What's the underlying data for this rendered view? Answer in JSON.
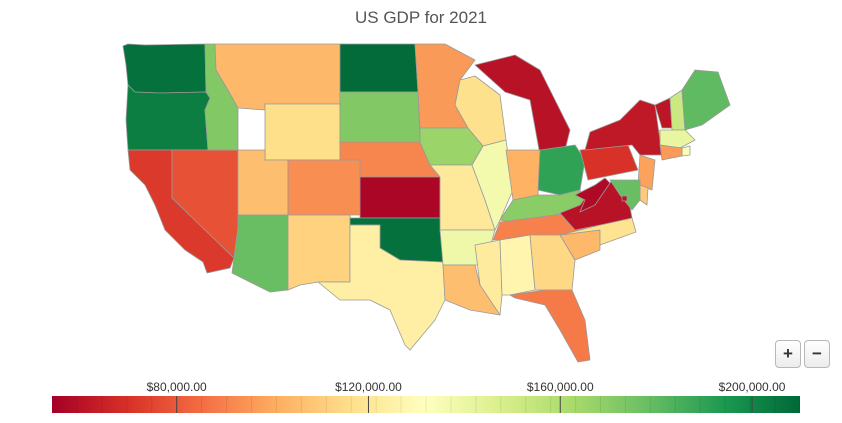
{
  "title": "US GDP for 2021",
  "colorscale": [
    "#a50026",
    "#d73027",
    "#f46d43",
    "#fdae61",
    "#fee08b",
    "#ffffbf",
    "#d9ef8b",
    "#a6d96a",
    "#66bd63",
    "#1a9850",
    "#006837"
  ],
  "scale_range": [
    54000,
    210000
  ],
  "legend_ticks": [
    {
      "value": 80000,
      "label": "$80,000.00"
    },
    {
      "value": 120000,
      "label": "$120,000.00"
    },
    {
      "value": 160000,
      "label": "$160,000.00"
    },
    {
      "value": 200000,
      "label": "$200,000.00"
    }
  ],
  "zoom": {
    "in_label": "+",
    "out_label": "−"
  },
  "states": [
    {
      "abbr": "WA",
      "value": 207000
    },
    {
      "abbr": "OR",
      "value": 203000
    },
    {
      "abbr": "CA",
      "value": 72000
    },
    {
      "abbr": "NV",
      "value": 78000
    },
    {
      "abbr": "ID",
      "value": 172000
    },
    {
      "abbr": "MT",
      "value": 104000
    },
    {
      "abbr": "WY",
      "value": 116000
    },
    {
      "abbr": "UT",
      "value": 106000
    },
    {
      "abbr": "AZ",
      "value": 178000
    },
    {
      "abbr": "CO",
      "value": 93000
    },
    {
      "abbr": "NM",
      "value": 112000
    },
    {
      "abbr": "ND",
      "value": 209000
    },
    {
      "abbr": "SD",
      "value": 172000
    },
    {
      "abbr": "NE",
      "value": 91000
    },
    {
      "abbr": "KS",
      "value": 56000
    },
    {
      "abbr": "OK",
      "value": 207000
    },
    {
      "abbr": "TX",
      "value": 124000
    },
    {
      "abbr": "MN",
      "value": 96000
    },
    {
      "abbr": "IA",
      "value": 166000
    },
    {
      "abbr": "MO",
      "value": 121000
    },
    {
      "abbr": "AR",
      "value": 139000
    },
    {
      "abbr": "LA",
      "value": 106000
    },
    {
      "abbr": "WI",
      "value": 117000
    },
    {
      "abbr": "IL",
      "value": 137000
    },
    {
      "abbr": "MI",
      "value": 60000
    },
    {
      "abbr": "IN",
      "value": 102000
    },
    {
      "abbr": "OH",
      "value": 190000
    },
    {
      "abbr": "KY",
      "value": 170000
    },
    {
      "abbr": "TN",
      "value": 90000
    },
    {
      "abbr": "MS",
      "value": 122000
    },
    {
      "abbr": "AL",
      "value": 127000
    },
    {
      "abbr": "GA",
      "value": 114000
    },
    {
      "abbr": "FL",
      "value": 88000
    },
    {
      "abbr": "SC",
      "value": 104000
    },
    {
      "abbr": "NC",
      "value": 118000
    },
    {
      "abbr": "VA",
      "value": 60000
    },
    {
      "abbr": "WV",
      "value": 57000
    },
    {
      "abbr": "PA",
      "value": 70000
    },
    {
      "abbr": "NY",
      "value": 62000
    },
    {
      "abbr": "VT",
      "value": 61000
    },
    {
      "abbr": "NH",
      "value": 152000
    },
    {
      "abbr": "ME",
      "value": 180000
    },
    {
      "abbr": "MA",
      "value": 141000
    },
    {
      "abbr": "RI",
      "value": 135000
    },
    {
      "abbr": "CT",
      "value": 96000
    },
    {
      "abbr": "NJ",
      "value": 98000
    },
    {
      "abbr": "DE",
      "value": 110000
    },
    {
      "abbr": "MD",
      "value": 178000
    },
    {
      "abbr": "DC",
      "value": 60000
    }
  ]
}
